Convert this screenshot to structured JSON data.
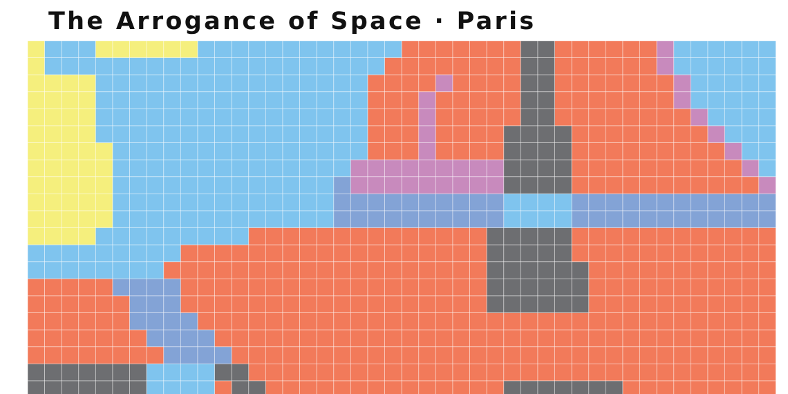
{
  "title": "The Arrogance of Space · Paris",
  "chart_data": {
    "type": "heatmap",
    "title": "The Arrogance of Space · Paris",
    "columns": 44,
    "rows": 21,
    "colors": {
      "Y": "#f5ef7d",
      "B": "#7fc4ee",
      "R": "#f27a5a",
      "G": "#6d6e71",
      "P": "#c88abd",
      "D": "#83a3d6"
    },
    "cells": [
      "YBBBYYYYYYBBBBBBBBBBBBRRRRRRRGGRRRRRRPBBBBBB",
      "YBBBBBBBBBBBBBBBBBBBBRRRRRRRRGGRRRRRRPBBBBBB",
      "YYYYBBBBBBBBBBBBBBBBRRRRPRRRRGGRRRRRRRPBBBBB",
      "YYYYBBBBBBBBBBBBBBBBRRRPRRRRRGGRRRRRRRPBBBBB",
      "YYYYBBBBBBBBBBBBBBBBRRRPRRRRRGGRRRRRRRRPBBBB",
      "YYYYBBBBBBBBBBBBBBBBRRRPRRRRGGGGRRRRRRRRPBBB",
      "YYYYYBBBBBBBBBBBBBBBRRRPRRRRGGGGRRRRRRRRRPBB",
      "YYYYYBBBBBBBBBBBBBBPPPPPPPPPGGGGRRRRRRRRRRPB",
      "YYYYYBBBBBBBBBBBBBDPPPPPPPPPGGGGRRRRRRRRRRRP",
      "YYYYYBBBBBBBBBBBBBDDDDDDDDDDBBBBDDDDDDDDDDDD",
      "YYYYYBBBBBBBBBBBBBDDDDDDDDDDBBBBDDDDDDDDDDDD",
      "YYYYBBBBBBBBBRRRRRRRRRRRRRRGGGGGRRRRRRRRRRRR",
      "BBBBBBBBBRRRRRRRRRRRRRRRRRRGGGGGRRRRRRRRRRRR",
      "BBBBBBBBRRRRRRRRRRRRRRRRRRRGGGGGGRRRRRRRRRRR",
      "RRRRRDDDDRRRRRRRRRRRRRRRRRRGGGGGGRRRRRRRRRRR",
      "RRRRRRDDDRRRRRRRRRRRRRRRRRRGGGGGGRRRRRRRRRRR",
      "RRRRRRDDDDRRRRRRRRRRRRRRRRRRRRRRRRRRRRRRRRRR",
      "RRRRRRRDDDDRRRRRRRRRRRRRRRRRRRRRRRRRRRRRRRRR",
      "RRRRRRRRDDDDRRRRRRRRRRRRRRRRRRRRRRRRRRRRRRRR",
      "GGGGGGGBBBBGGRRRRRRRRRRRRRRRRRRRRRRRRRRRRRRR",
      "GGGGGGGBBBBRGGRRRRRRRRRRRRRRGGGGGGGRRRRRRRRR"
    ]
  }
}
